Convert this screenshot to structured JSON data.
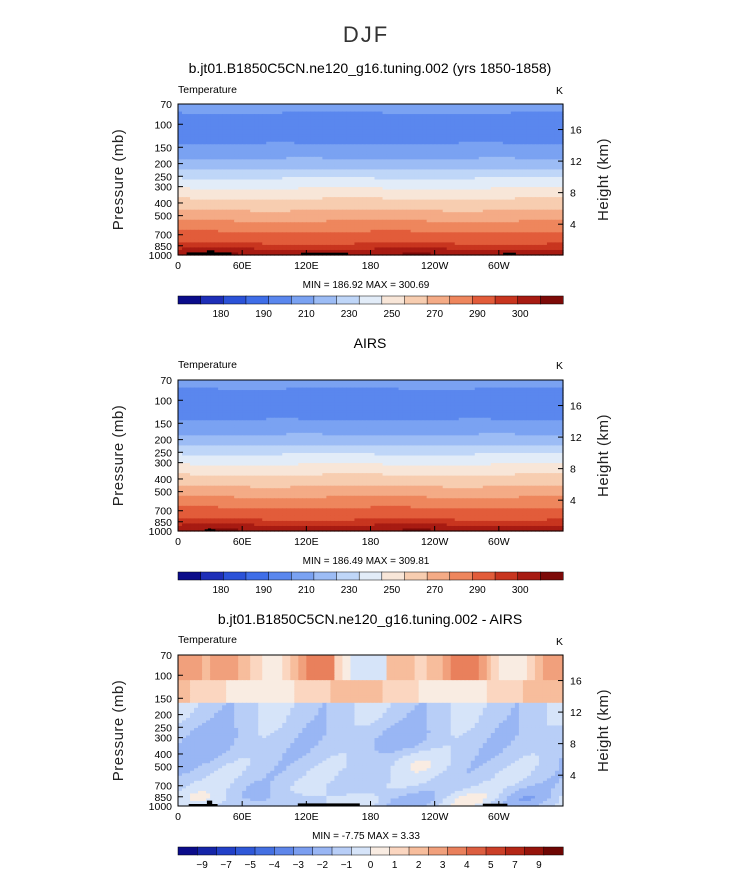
{
  "figure": {
    "title": "DJF",
    "left_axis_label": "Pressure (mb)",
    "right_axis_label": "Height (km)"
  },
  "chart_data": [
    {
      "type": "heatmap",
      "title": "b.jt01.B1850C5CN.ne120_g16.tuning.002 (yrs 1850-1858)",
      "variable": "Temperature",
      "units": "K",
      "ylabel": "Pressure (mb)",
      "y2label": "Height (km)",
      "xticks": [
        "0",
        "60E",
        "120E",
        "180",
        "120W",
        "60W"
      ],
      "xtick_positions": [
        0,
        60,
        120,
        180,
        240,
        300
      ],
      "xlim": [
        0,
        360
      ],
      "pressure_ticks": [
        70,
        100,
        150,
        200,
        250,
        300,
        400,
        500,
        700,
        850,
        1000
      ],
      "ylim": [
        70,
        1000
      ],
      "height_ticks": [
        4,
        8,
        12,
        16
      ],
      "stats": "MIN = 186.92  MAX = 300.69",
      "levels": [
        175,
        180,
        185,
        190,
        200,
        210,
        220,
        230,
        240,
        250,
        260,
        270,
        280,
        290,
        295,
        300
      ],
      "colorbar_labels": [
        "180",
        "190",
        "210",
        "230",
        "250",
        "270",
        "290",
        "300"
      ],
      "min": 186.92,
      "max": 300.69,
      "pattern": "temperature"
    },
    {
      "type": "heatmap",
      "title": "AIRS",
      "variable": "Temperature",
      "units": "K",
      "ylabel": "Pressure (mb)",
      "y2label": "Height (km)",
      "xticks": [
        "0",
        "60E",
        "120E",
        "180",
        "120W",
        "60W"
      ],
      "xtick_positions": [
        0,
        60,
        120,
        180,
        240,
        300
      ],
      "xlim": [
        0,
        360
      ],
      "pressure_ticks": [
        70,
        100,
        150,
        200,
        250,
        300,
        400,
        500,
        700,
        850,
        1000
      ],
      "ylim": [
        70,
        1000
      ],
      "height_ticks": [
        4,
        8,
        12,
        16
      ],
      "stats": "MIN = 186.49  MAX = 309.81",
      "levels": [
        175,
        180,
        185,
        190,
        200,
        210,
        220,
        230,
        240,
        250,
        260,
        270,
        280,
        290,
        295,
        300
      ],
      "colorbar_labels": [
        "180",
        "190",
        "210",
        "230",
        "250",
        "270",
        "290",
        "300"
      ],
      "min": 186.49,
      "max": 309.81,
      "pattern": "temperature"
    },
    {
      "type": "heatmap",
      "title": "b.jt01.B1850C5CN.ne120_g16.tuning.002 - AIRS",
      "variable": "Temperature",
      "units": "K",
      "ylabel": "Pressure (mb)",
      "y2label": "Height (km)",
      "xticks": [
        "0",
        "60E",
        "120E",
        "180",
        "120W",
        "60W"
      ],
      "xtick_positions": [
        0,
        60,
        120,
        180,
        240,
        300
      ],
      "xlim": [
        0,
        360
      ],
      "pressure_ticks": [
        70,
        100,
        150,
        200,
        250,
        300,
        400,
        500,
        700,
        850,
        1000
      ],
      "ylim": [
        70,
        1000
      ],
      "height_ticks": [
        4,
        8,
        12,
        16
      ],
      "stats": "MIN =   -7.75  MAX =     3.33",
      "levels": [
        -10,
        -9,
        -8,
        -7,
        -6,
        -5,
        -4,
        -3,
        -2,
        -1,
        0,
        1,
        2,
        3,
        4,
        5,
        6,
        7,
        8,
        9,
        10
      ],
      "colorbar_labels": [
        "-9",
        "-7",
        "-5",
        "-4",
        "-3",
        "-2",
        "-1",
        "0",
        "1",
        "2",
        "3",
        "4",
        "5",
        "7",
        "9"
      ],
      "min": -7.75,
      "max": 3.33,
      "pattern": "difference"
    }
  ],
  "colors": {
    "temperature_palette": [
      "#0b0c8a",
      "#1e2fb8",
      "#2b52d8",
      "#3f6ee8",
      "#5a87ee",
      "#7aa2f2",
      "#9cbcf5",
      "#bfd6f8",
      "#e2ecf8",
      "#f8e6d8",
      "#f7cdb0",
      "#f4ab86",
      "#ee865d",
      "#e25c3a",
      "#c8351f",
      "#a71b12",
      "#7d0a08"
    ],
    "difference_palette": [
      "#0b0c8a",
      "#1525a8",
      "#2240c8",
      "#2f58d8",
      "#4470e2",
      "#5e86ea",
      "#7b9ef0",
      "#99b6f4",
      "#b8cef7",
      "#d6e4f9",
      "#f9ece2",
      "#fbd6c0",
      "#f7bd9c",
      "#f1a07c",
      "#e9805c",
      "#dc5e40",
      "#cb3f28",
      "#b42616",
      "#96140b",
      "#6e0603"
    ],
    "terrain": "#000000"
  }
}
